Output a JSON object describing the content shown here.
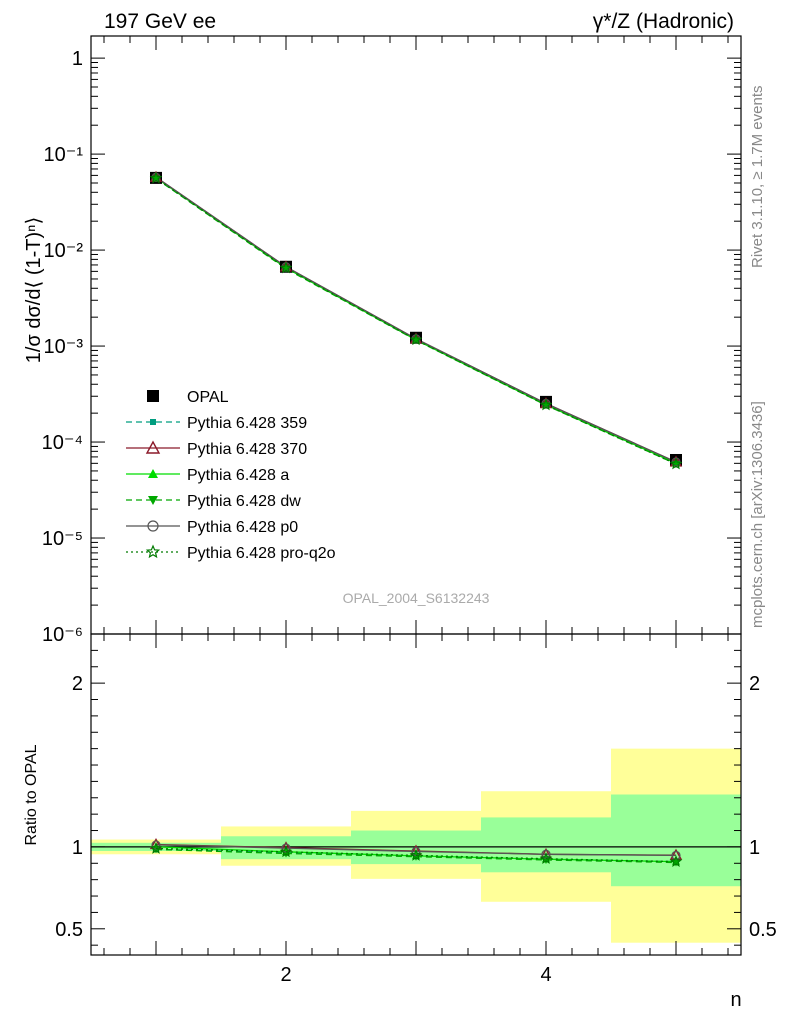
{
  "header": {
    "left": "197 GeV ee",
    "right": "γ*/Z (Hadronic)"
  },
  "side": {
    "rivet": "Rivet 3.1.10, ≥ 1.7M events",
    "mcplots": "mcplots.cern.ch [arXiv:1306.3436]"
  },
  "colors": {
    "data": "#000000",
    "p359": "#009d7f",
    "p370": "#8b1a2a",
    "pa": "#00dd00",
    "pdw": "#00a800",
    "pp0": "#555555",
    "pq2o": "#007a00",
    "band_outer": "#ffff99",
    "band_inner": "#99ff99"
  },
  "chart_data": [
    {
      "type": "line",
      "title": "",
      "ylabel": "1/σ dσ/d⟨ (1-T)ⁿ⟩",
      "xlabel": "",
      "yscale": "log",
      "ylim": [
        1e-06,
        1.7
      ],
      "xlim": [
        0.5,
        5.5
      ],
      "watermark": "OPAL_2004_S6132243",
      "y_ticks": [
        "1",
        "10⁻¹",
        "10⁻²",
        "10⁻³",
        "10⁻⁴",
        "10⁻⁵",
        "10⁻⁶"
      ],
      "x": [
        1,
        2,
        3,
        4,
        5
      ],
      "data": {
        "name": "OPAL",
        "values": [
          0.0565,
          0.0067,
          0.00122,
          0.000262,
          6.5e-05
        ]
      },
      "series": [
        {
          "name": "Pythia 6.428 359",
          "values": [
            0.0557,
            0.0065,
            0.00116,
            0.000244,
            6e-05
          ],
          "color": "#009d7f",
          "marker": "square-small",
          "dash": "dashed"
        },
        {
          "name": "Pythia 6.428 370",
          "values": [
            0.0575,
            0.0067,
            0.00119,
            0.000252,
            6.2e-05
          ],
          "color": "#8b1a2a",
          "marker": "triangle-open",
          "dash": "solid"
        },
        {
          "name": "Pythia 6.428 a",
          "values": [
            0.0566,
            0.0065,
            0.00116,
            0.000244,
            6e-05
          ],
          "color": "#00dd00",
          "marker": "triangle-filled",
          "dash": "solid"
        },
        {
          "name": "Pythia 6.428 dw",
          "values": [
            0.0557,
            0.0064,
            0.00115,
            0.000242,
            5.9e-05
          ],
          "color": "#00a800",
          "marker": "triangle-down",
          "dash": "dashed"
        },
        {
          "name": "Pythia 6.428 p0",
          "values": [
            0.0574,
            0.0067,
            0.00119,
            0.000252,
            6.2e-05
          ],
          "color": "#555555",
          "marker": "circle-open",
          "dash": "solid"
        },
        {
          "name": "Pythia 6.428 pro-q2o",
          "values": [
            0.0561,
            0.0065,
            0.00116,
            0.000243,
            5.9e-05
          ],
          "color": "#007a00",
          "marker": "star-open",
          "dash": "dotted"
        }
      ]
    },
    {
      "type": "line",
      "ylabel": "Ratio to OPAL",
      "xlabel": "n",
      "ylim": [
        0.34,
        2.3
      ],
      "xlim": [
        0.5,
        5.5
      ],
      "y_tick_labels": [
        "0.5",
        "1",
        "2"
      ],
      "x_tick_labels": [
        "2",
        "4"
      ],
      "x": [
        1,
        2,
        3,
        4,
        5
      ],
      "bands": {
        "bins": [
          [
            0.5,
            1.5
          ],
          [
            1.5,
            2.5
          ],
          [
            2.5,
            3.5
          ],
          [
            3.5,
            4.5
          ],
          [
            4.5,
            5.5
          ]
        ],
        "outer": [
          [
            0.955,
            1.045
          ],
          [
            0.885,
            1.125
          ],
          [
            0.805,
            1.22
          ],
          [
            0.665,
            1.34
          ],
          [
            0.415,
            1.6
          ]
        ],
        "inner": [
          [
            0.975,
            1.025
          ],
          [
            0.925,
            1.065
          ],
          [
            0.895,
            1.1
          ],
          [
            0.845,
            1.18
          ],
          [
            0.76,
            1.32
          ]
        ]
      },
      "series": [
        {
          "name": "Pythia 6.428 359",
          "values": [
            0.985,
            0.965,
            0.945,
            0.925,
            0.91
          ]
        },
        {
          "name": "Pythia 6.428 370",
          "values": [
            1.015,
            0.995,
            0.975,
            0.955,
            0.95
          ]
        },
        {
          "name": "Pythia 6.428 a",
          "values": [
            1.0,
            0.97,
            0.945,
            0.925,
            0.91
          ]
        },
        {
          "name": "Pythia 6.428 dw",
          "values": [
            0.985,
            0.96,
            0.94,
            0.92,
            0.905
          ]
        },
        {
          "name": "Pythia 6.428 p0",
          "values": [
            1.012,
            0.993,
            0.972,
            0.955,
            0.948
          ]
        },
        {
          "name": "Pythia 6.428 pro-q2o",
          "values": [
            0.99,
            0.97,
            0.948,
            0.928,
            0.91
          ]
        }
      ]
    }
  ]
}
